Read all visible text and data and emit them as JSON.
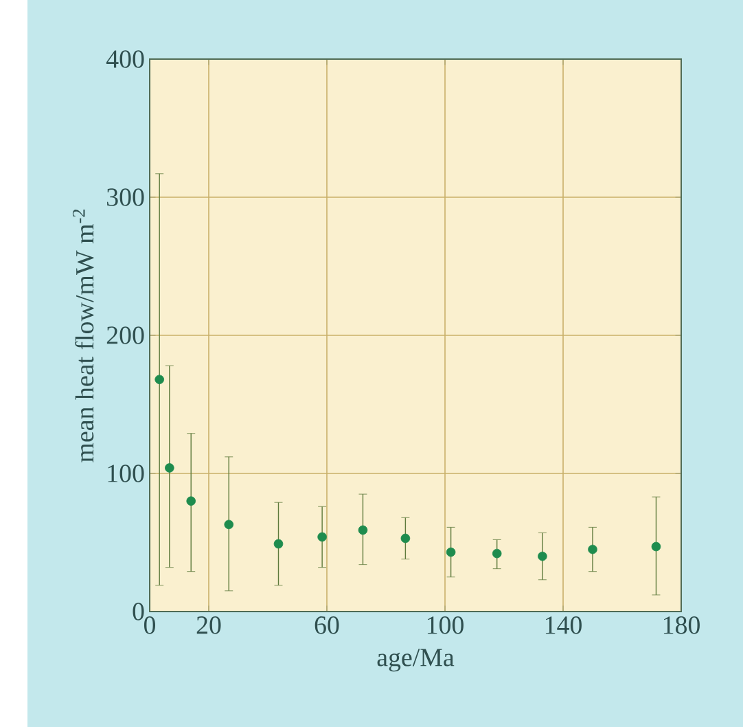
{
  "chart_data": {
    "type": "scatter",
    "xlabel": "age/Ma",
    "ylabel": "mean heat flow/mW m$^{-2}$",
    "x": [
      3.3,
      6.7,
      14,
      26.8,
      43.6,
      58.4,
      72.2,
      86.6,
      102,
      117.6,
      133,
      150,
      171.5
    ],
    "series": [
      {
        "color": "#1e8c4e",
        "values": [
          168,
          104,
          80,
          63,
          49,
          54,
          59,
          53,
          43,
          42,
          40,
          45,
          47
        ],
        "errors": [
          [
            19,
            317
          ],
          [
            32,
            178
          ],
          [
            29,
            129
          ],
          [
            15,
            112
          ],
          [
            19,
            79
          ],
          [
            32,
            76
          ],
          [
            34,
            85
          ],
          [
            38,
            68
          ],
          [
            25,
            61
          ],
          [
            31,
            52
          ],
          [
            23,
            57
          ],
          [
            29,
            61
          ],
          [
            12,
            83
          ]
        ]
      }
    ],
    "xlim": [
      0,
      180
    ],
    "ylim": [
      0,
      400
    ],
    "xticks": [
      0,
      20,
      60,
      100,
      140,
      180
    ],
    "yticks": [
      0,
      100,
      200,
      300,
      400
    ],
    "grid": true,
    "marker": "circle"
  }
}
